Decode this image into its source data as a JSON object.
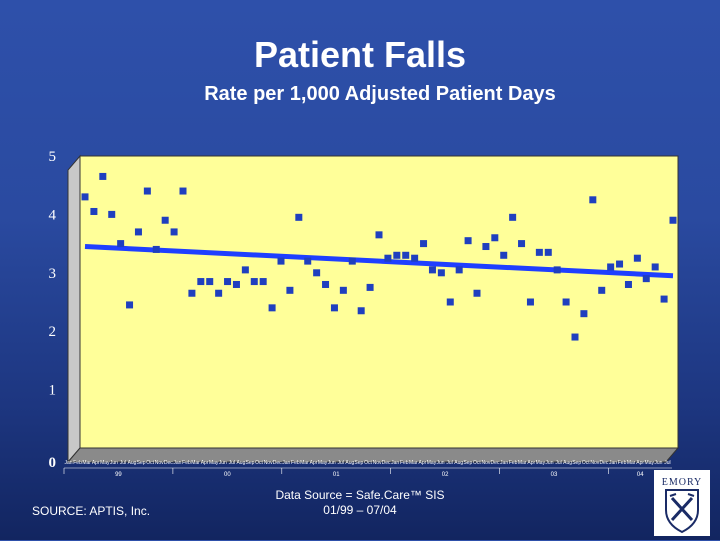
{
  "slide": {
    "title": "Patient Falls",
    "subtitle": "Rate per 1,000 Adjusted Patient Days",
    "source": "SOURCE: APTIS, Inc.",
    "data_source_line1": "Data Source = Safe.Care™ SIS",
    "data_source_line2": "01/99 – 07/04",
    "logo_text": "EMORY"
  },
  "colors": {
    "background": "#2a4aa0",
    "plot_area": "#ffff99",
    "marker": "#1f3fbf",
    "trend": "#1f3fff"
  },
  "chart_data": {
    "type": "scatter",
    "title": "",
    "xlabel": "",
    "ylabel": "",
    "ylim": [
      0,
      5
    ],
    "yticks": [
      "0",
      "1",
      "2",
      "3",
      "4",
      "5"
    ],
    "year_labels": [
      "99",
      "00",
      "01",
      "02",
      "03",
      "04"
    ],
    "month_abbrev": [
      "Jan",
      "Feb",
      "Mar",
      "Apr",
      "May",
      "Jun",
      "Jul",
      "Aug",
      "Sep",
      "Oct",
      "Nov",
      "Dec"
    ],
    "grid": false,
    "legend": "none",
    "series": [
      {
        "kind": "points",
        "values": [
          4.3,
          4.05,
          4.65,
          4.0,
          3.5,
          2.45,
          3.7,
          4.4,
          3.4,
          3.9,
          3.7,
          4.4,
          2.65,
          2.85,
          2.85,
          2.65,
          2.85,
          2.8,
          3.05,
          2.85,
          2.85,
          2.4,
          3.2,
          2.7,
          3.95,
          3.2,
          3.0,
          2.8,
          2.4,
          2.7,
          3.2,
          2.35,
          2.75,
          3.65,
          3.25,
          3.3,
          3.3,
          3.25,
          3.5,
          3.05,
          3.0,
          2.5,
          3.05,
          3.55,
          2.65,
          3.45,
          3.6,
          3.3,
          3.95,
          3.5,
          2.5,
          3.35,
          3.35,
          3.05,
          2.5,
          1.9,
          2.3,
          4.25,
          2.7,
          3.1,
          3.15,
          2.8,
          3.25,
          2.9,
          3.1,
          2.55,
          3.9
        ]
      },
      {
        "kind": "trend",
        "values": [
          3.45,
          2.95
        ]
      }
    ]
  }
}
